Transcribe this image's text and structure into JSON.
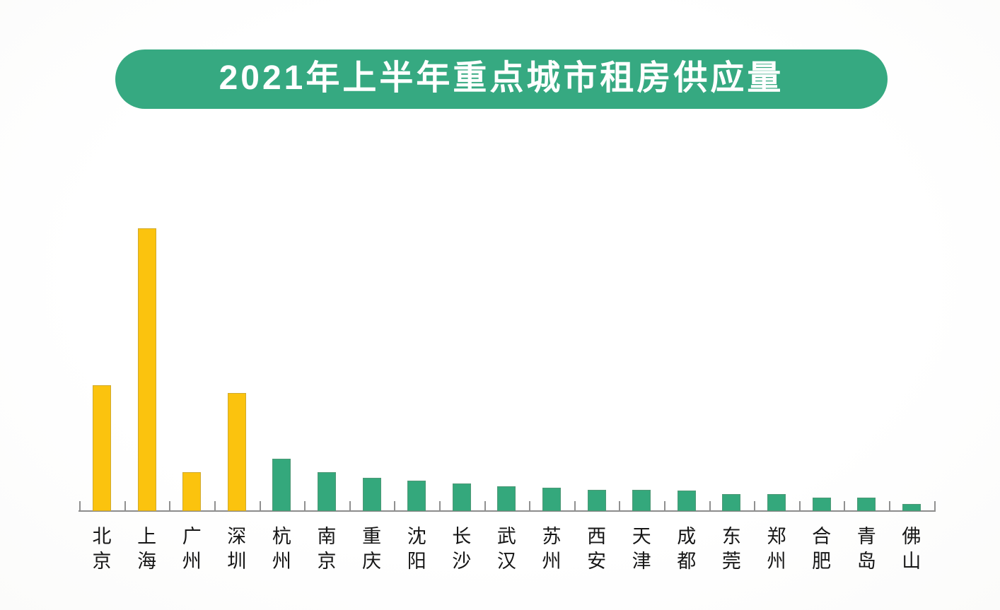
{
  "page": {
    "background": "#fefefe"
  },
  "banner": {
    "title": "2021年上半年重点城市租房供应量",
    "background": "#36A981",
    "text_color": "#ffffff"
  },
  "chart_data": {
    "type": "bar",
    "title": "2021年上半年重点城市租房供应量",
    "categories": [
      "北京",
      "上海",
      "广州",
      "深圳",
      "杭州",
      "南京",
      "重庆",
      "沈阳",
      "长沙",
      "武汉",
      "苏州",
      "西安",
      "天津",
      "成都",
      "东莞",
      "郑州",
      "合肥",
      "青岛",
      "佛山"
    ],
    "values": [
      44.5,
      100,
      13.8,
      41.8,
      18.5,
      13.8,
      11.8,
      10.8,
      9.8,
      8.8,
      8.3,
      7.5,
      7.5,
      7.3,
      6.0,
      6.0,
      4.8,
      4.8,
      2.5
    ],
    "value_note": "relative supply index estimated from bar heights, Shanghai = 100; chart shows no numeric y-axis",
    "bar_colors": [
      "#FBC30E",
      "#FBC30E",
      "#FBC30E",
      "#FBC30E",
      "#34A87C",
      "#34A87C",
      "#34A87C",
      "#34A87C",
      "#34A87C",
      "#34A87C",
      "#34A87C",
      "#34A87C",
      "#34A87C",
      "#34A87C",
      "#34A87C",
      "#34A87C",
      "#34A87C",
      "#34A87C",
      "#34A87C"
    ],
    "highlight_color": "#FBC30E",
    "default_color": "#34A87C",
    "xlabel": "",
    "ylabel": "",
    "ylim": [
      0,
      105
    ],
    "grid": false,
    "legend": false,
    "x_tick_label_orientation": "vertical",
    "x_tick_style": "boundary ticks above axis",
    "axis_color": "#8c8c8c"
  }
}
